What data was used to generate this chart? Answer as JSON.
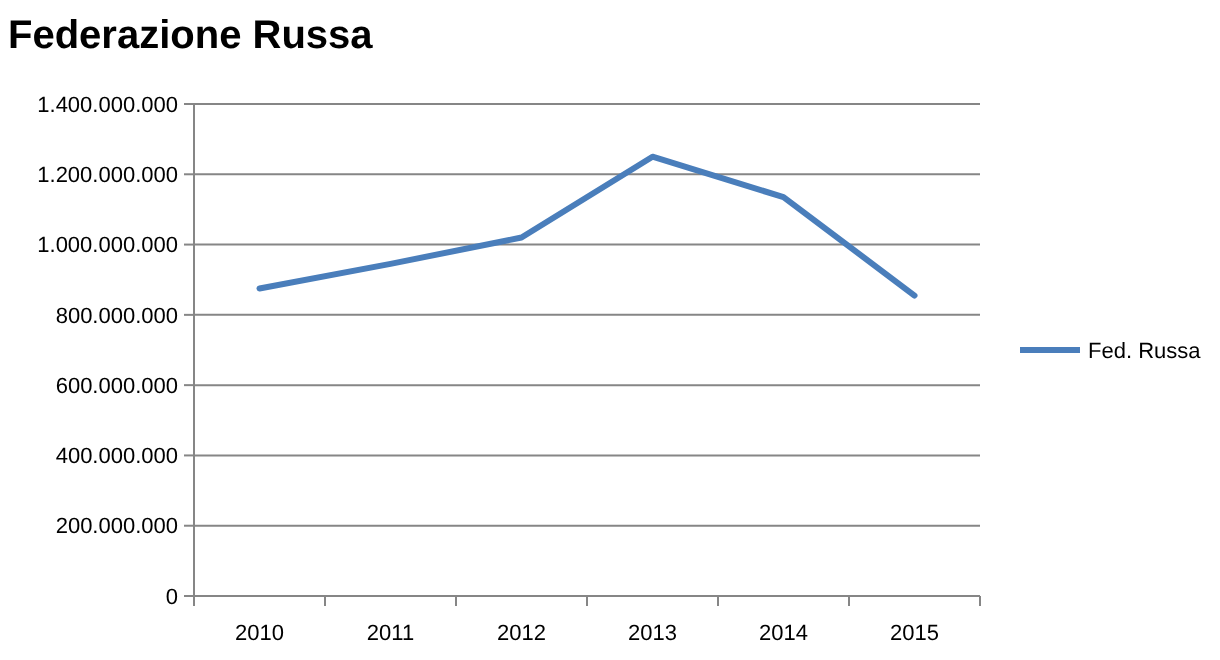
{
  "chart_data": {
    "type": "line",
    "title": "Federazione Russa",
    "categories": [
      "2010",
      "2011",
      "2012",
      "2013",
      "2014",
      "2015"
    ],
    "series": [
      {
        "name": "Fed. Russa",
        "color": "#4a7ebb",
        "values": [
          875000000,
          945000000,
          1020000000,
          1250000000,
          1135000000,
          855000000
        ]
      }
    ],
    "ylim": [
      0,
      1400000000
    ],
    "yticks": [
      0,
      {
        "value": 200000000,
        "label": "200.000.000"
      },
      {
        "value": 400000000,
        "label": "400.000.000"
      },
      {
        "value": 600000000,
        "label": "600.000.000"
      },
      {
        "value": 800000000,
        "label": "800.000.000"
      },
      {
        "value": 1000000000,
        "label": "1.000.000.000"
      },
      {
        "value": 1200000000,
        "label": "1.200.000.000"
      },
      {
        "value": 1400000000,
        "label": "1.400.000.000"
      }
    ],
    "grid": "y",
    "legend": "right",
    "marker": "none",
    "line_style": "solid"
  }
}
